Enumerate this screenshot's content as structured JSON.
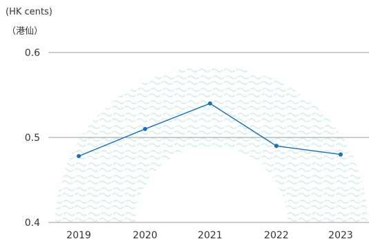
{
  "chart_data": {
    "type": "line",
    "unit_label_en": "(HK cents)",
    "unit_label_zh": "（港仙）",
    "x": [
      "2019",
      "2020",
      "2021",
      "2022",
      "2023"
    ],
    "series": [
      {
        "values": [
          0.478,
          0.51,
          0.54,
          0.49,
          0.48
        ]
      }
    ],
    "ylim": [
      0.4,
      0.6
    ],
    "yticks": [
      "0.4",
      "0.5",
      "0.6"
    ],
    "grid": true,
    "colors": {
      "line": "#1a6fb0",
      "grid": "#9a9a9a",
      "decor": "#e9f5f5"
    }
  }
}
